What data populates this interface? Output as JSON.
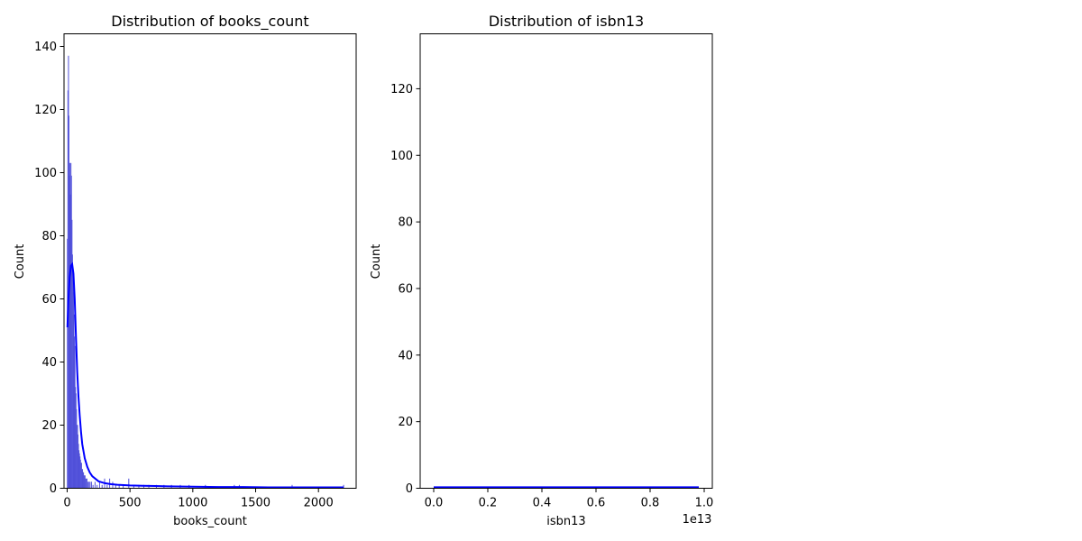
{
  "colors": {
    "bar_fill": "#6a6ae8",
    "bar_edge": "#4b4bd6",
    "kde_line": "#0000ff",
    "axis": "#000000",
    "background": "#ffffff"
  },
  "chart_data": [
    {
      "type": "bar",
      "subtype": "histogram_with_kde",
      "title": "Distribution of books_count",
      "xlabel": "books_count",
      "ylabel": "Count",
      "xlim": [
        -25,
        2300
      ],
      "ylim": [
        0,
        144
      ],
      "xticks": [
        0,
        500,
        1000,
        1500,
        2000
      ],
      "yticks": [
        0,
        20,
        40,
        60,
        80,
        100,
        120,
        140
      ],
      "grid": false,
      "bins": [
        {
          "x": 2,
          "count": 79
        },
        {
          "x": 6,
          "count": 126
        },
        {
          "x": 10,
          "count": 137
        },
        {
          "x": 14,
          "count": 118
        },
        {
          "x": 18,
          "count": 99
        },
        {
          "x": 22,
          "count": 103
        },
        {
          "x": 26,
          "count": 93
        },
        {
          "x": 30,
          "count": 103
        },
        {
          "x": 34,
          "count": 99
        },
        {
          "x": 38,
          "count": 85
        },
        {
          "x": 42,
          "count": 74
        },
        {
          "x": 46,
          "count": 66
        },
        {
          "x": 50,
          "count": 62
        },
        {
          "x": 54,
          "count": 55
        },
        {
          "x": 58,
          "count": 48
        },
        {
          "x": 62,
          "count": 45
        },
        {
          "x": 66,
          "count": 32
        },
        {
          "x": 70,
          "count": 30
        },
        {
          "x": 74,
          "count": 25
        },
        {
          "x": 78,
          "count": 20
        },
        {
          "x": 82,
          "count": 20
        },
        {
          "x": 86,
          "count": 17
        },
        {
          "x": 90,
          "count": 14
        },
        {
          "x": 94,
          "count": 12
        },
        {
          "x": 98,
          "count": 11
        },
        {
          "x": 102,
          "count": 10
        },
        {
          "x": 106,
          "count": 9
        },
        {
          "x": 110,
          "count": 8
        },
        {
          "x": 114,
          "count": 8
        },
        {
          "x": 118,
          "count": 6
        },
        {
          "x": 122,
          "count": 6
        },
        {
          "x": 126,
          "count": 5
        },
        {
          "x": 130,
          "count": 5
        },
        {
          "x": 134,
          "count": 4
        },
        {
          "x": 138,
          "count": 4
        },
        {
          "x": 142,
          "count": 4
        },
        {
          "x": 146,
          "count": 3
        },
        {
          "x": 150,
          "count": 3
        },
        {
          "x": 158,
          "count": 3
        },
        {
          "x": 166,
          "count": 2
        },
        {
          "x": 174,
          "count": 2
        },
        {
          "x": 182,
          "count": 2
        },
        {
          "x": 194,
          "count": 2
        },
        {
          "x": 206,
          "count": 1
        },
        {
          "x": 222,
          "count": 2
        },
        {
          "x": 238,
          "count": 1
        },
        {
          "x": 258,
          "count": 2
        },
        {
          "x": 278,
          "count": 1
        },
        {
          "x": 298,
          "count": 3
        },
        {
          "x": 318,
          "count": 1
        },
        {
          "x": 338,
          "count": 3
        },
        {
          "x": 362,
          "count": 2
        },
        {
          "x": 386,
          "count": 1
        },
        {
          "x": 414,
          "count": 1
        },
        {
          "x": 446,
          "count": 1
        },
        {
          "x": 490,
          "count": 3
        },
        {
          "x": 530,
          "count": 1
        },
        {
          "x": 570,
          "count": 1
        },
        {
          "x": 610,
          "count": 1
        },
        {
          "x": 650,
          "count": 1
        },
        {
          "x": 710,
          "count": 1
        },
        {
          "x": 770,
          "count": 1
        },
        {
          "x": 830,
          "count": 1
        },
        {
          "x": 900,
          "count": 1
        },
        {
          "x": 970,
          "count": 1
        },
        {
          "x": 1100,
          "count": 1
        },
        {
          "x": 1330,
          "count": 1
        },
        {
          "x": 1370,
          "count": 1
        },
        {
          "x": 1790,
          "count": 1
        },
        {
          "x": 2200,
          "count": 1
        }
      ],
      "kde": {
        "x": [
          2,
          10,
          20,
          30,
          40,
          50,
          60,
          70,
          80,
          90,
          100,
          110,
          120,
          140,
          160,
          180,
          200,
          250,
          300,
          350,
          400,
          500,
          600,
          700,
          800,
          1000,
          1200,
          1400,
          1600,
          1800,
          2000,
          2200
        ],
        "y": [
          51,
          60,
          67,
          70.5,
          71,
          68,
          60,
          48,
          37,
          29,
          23,
          18,
          14,
          9.5,
          6.8,
          5,
          3.8,
          2.2,
          1.6,
          1.3,
          1.1,
          0.9,
          0.8,
          0.7,
          0.6,
          0.5,
          0.4,
          0.4,
          0.3,
          0.3,
          0.3,
          0.3
        ]
      }
    },
    {
      "type": "bar",
      "subtype": "histogram_with_kde",
      "title": "Distribution of isbn13",
      "xlabel": "isbn13",
      "ylabel": "Count",
      "offset_label": "1e13",
      "xlim": [
        -0.05,
        1.03
      ],
      "ylim": [
        0,
        136.5
      ],
      "xticks": [
        0.0,
        0.2,
        0.4,
        0.6,
        0.8,
        1.0
      ],
      "yticks": [
        0,
        20,
        40,
        60,
        80,
        100,
        120
      ],
      "grid": false,
      "bins": [],
      "kde": {
        "x": [
          0.0,
          0.2,
          0.4,
          0.6,
          0.8,
          0.98
        ],
        "y": [
          0.3,
          0.3,
          0.3,
          0.3,
          0.3,
          0.3
        ]
      }
    }
  ]
}
